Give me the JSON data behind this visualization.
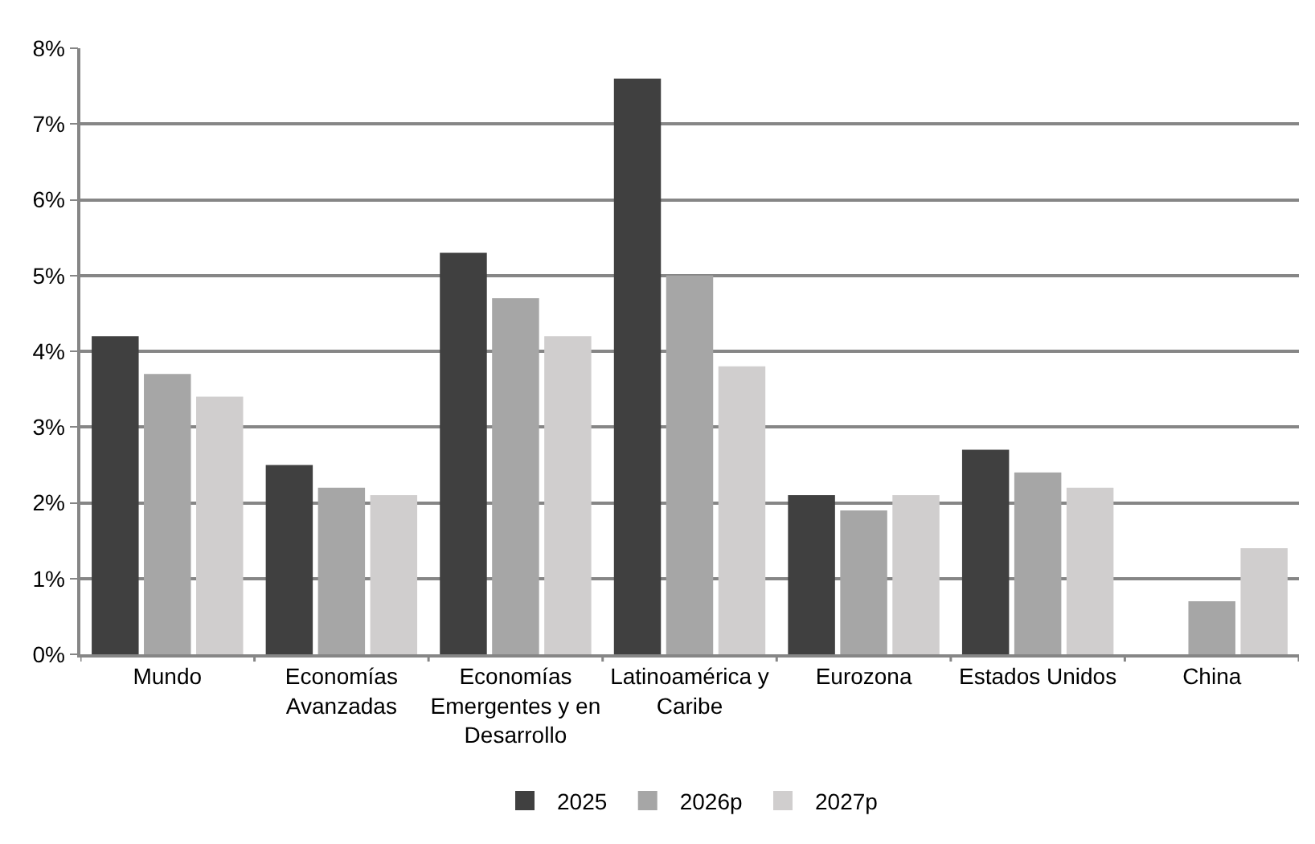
{
  "chart_data": {
    "type": "bar",
    "categories": [
      "Mundo",
      "Economías Avanzadas",
      "Economías Emergentes y en Desarrollo",
      "Latinoamérica y Caribe",
      "Eurozona",
      "Estados Unidos",
      "China"
    ],
    "series": [
      {
        "name": "2025",
        "color": "#404040",
        "values": [
          4.2,
          2.5,
          5.3,
          7.6,
          2.1,
          2.7,
          null
        ]
      },
      {
        "name": "2026p",
        "color": "#a6a6a6",
        "values": [
          3.7,
          2.2,
          4.7,
          5.0,
          1.9,
          2.4,
          0.7
        ]
      },
      {
        "name": "2027p",
        "color": "#d0cece",
        "values": [
          3.4,
          2.1,
          4.2,
          3.8,
          2.1,
          2.2,
          1.4
        ]
      }
    ],
    "ylim": [
      0,
      8
    ],
    "yticks": [
      {
        "value": 0,
        "label": "0%"
      },
      {
        "value": 1,
        "label": "1%"
      },
      {
        "value": 2,
        "label": "2%"
      },
      {
        "value": 3,
        "label": "3%"
      },
      {
        "value": 4,
        "label": "4%"
      },
      {
        "value": 5,
        "label": "5%"
      },
      {
        "value": 6,
        "label": "6%"
      },
      {
        "value": 7,
        "label": "7%"
      },
      {
        "value": 8,
        "label": "8%"
      }
    ],
    "grid": "y",
    "legend": "bottom"
  }
}
